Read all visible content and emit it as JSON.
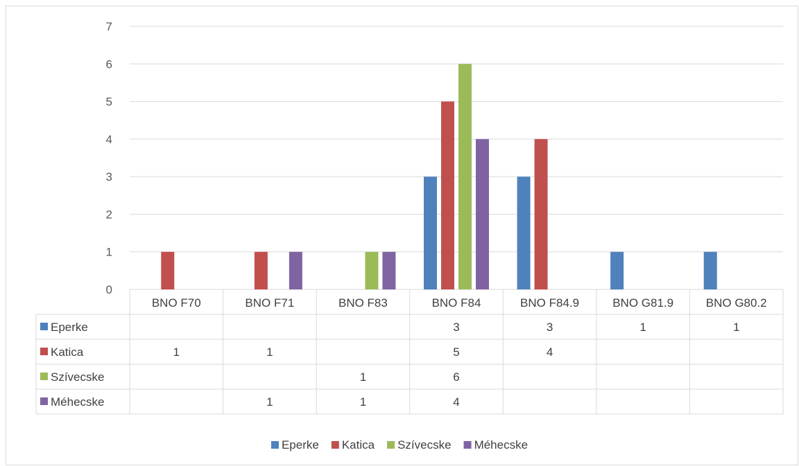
{
  "chart_data": {
    "type": "bar",
    "title": "",
    "xlabel": "",
    "ylabel": "",
    "ylim": [
      0,
      7
    ],
    "yticks": [
      0,
      1,
      2,
      3,
      4,
      5,
      6,
      7
    ],
    "grid": true,
    "legend_position": "bottom",
    "data_table": true,
    "categories": [
      "BNO F70",
      "BNO F71",
      "BNO F83",
      "BNO F84",
      "BNO F84.9",
      "BNO G81.9",
      "BNO G80.2"
    ],
    "series": [
      {
        "name": "Eperke",
        "color": "#4f81bd",
        "values": [
          null,
          null,
          null,
          3,
          3,
          1,
          1
        ]
      },
      {
        "name": "Katica",
        "color": "#c0504d",
        "values": [
          1,
          1,
          null,
          5,
          4,
          null,
          null
        ]
      },
      {
        "name": "Szívecske",
        "color": "#9bbb59",
        "values": [
          null,
          null,
          1,
          6,
          null,
          null,
          null
        ]
      },
      {
        "name": "Méhecske",
        "color": "#8064a2",
        "values": [
          null,
          1,
          1,
          4,
          null,
          null,
          null
        ]
      }
    ]
  }
}
